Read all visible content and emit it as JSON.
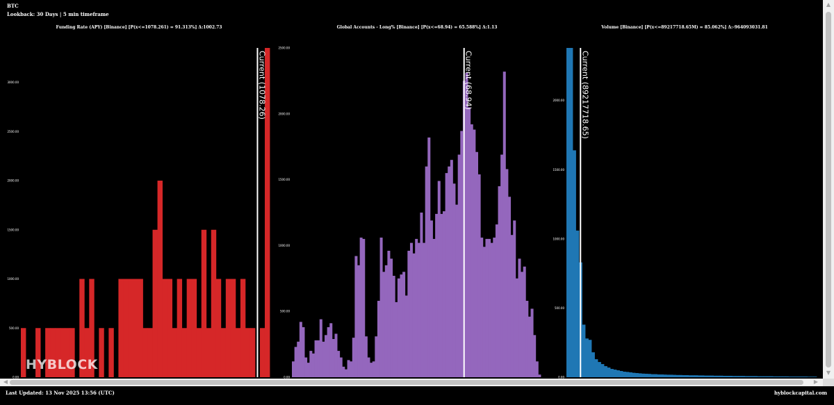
{
  "header": {
    "symbol": "BTC",
    "lookback": "Lookback: 30 Days | 5 min timeframe"
  },
  "logo": "HYBLOCK",
  "footer": {
    "last_updated": "Last Updated: 13 Nov 2025 13:56 (UTC)",
    "site": "hyblockcapital.com"
  },
  "colors": {
    "funding": "#d62728",
    "accounts": "#9467bd",
    "volume": "#1f77b4",
    "background": "#000000"
  },
  "chart_data": [
    {
      "type": "bar",
      "title": "Funding Rate (APY) [Binance] [P(x<=1078.261) = 91.313%] Δ:1002.73",
      "current_label": "Current (1078.26)",
      "current_index": 48.5,
      "ylim": [
        0,
        3350
      ],
      "yticks": [
        0,
        500,
        1000,
        1500,
        2000,
        2500,
        3000
      ],
      "ytick_labels": [
        "0.00",
        "500.00",
        "1000.00",
        "1500.00",
        "2000.00",
        "2500.00",
        "3000.00"
      ],
      "values": [
        500,
        0,
        0,
        500,
        0,
        500,
        500,
        500,
        500,
        500,
        500,
        0,
        1000,
        500,
        1000,
        0,
        500,
        0,
        500,
        0,
        1000,
        1000,
        1000,
        1000,
        1000,
        500,
        500,
        1500,
        2000,
        1000,
        1000,
        500,
        1000,
        500,
        1000,
        1000,
        500,
        1500,
        500,
        1500,
        1000,
        500,
        1000,
        1000,
        500,
        1000,
        500,
        500,
        0,
        500,
        3350
      ]
    },
    {
      "type": "bar",
      "title": "Global Accounts - Long% [Binance] [P(x<=68.94) = 65.588%] Δ:1.13",
      "current_label": "Current (68.94)",
      "current_index": 68.5,
      "ylim": [
        0,
        2500
      ],
      "yticks": [
        0,
        500,
        1000,
        1500,
        2000,
        2500
      ],
      "ytick_labels": [
        "0.00",
        "500.00",
        "1000.00",
        "1500.00",
        "2000.00",
        "2500.00"
      ],
      "values": [
        120,
        230,
        270,
        420,
        380,
        150,
        110,
        200,
        180,
        280,
        280,
        440,
        270,
        320,
        380,
        410,
        290,
        330,
        200,
        150,
        80,
        60,
        130,
        120,
        300,
        920,
        850,
        1060,
        1050,
        310,
        150,
        110,
        120,
        310,
        580,
        1060,
        800,
        850,
        960,
        900,
        770,
        570,
        750,
        780,
        800,
        620,
        960,
        1020,
        940,
        1050,
        1020,
        1250,
        1020,
        1600,
        1820,
        1190,
        1050,
        1240,
        1490,
        1240,
        1260,
        1550,
        1600,
        1650,
        1470,
        1310,
        1690,
        1870,
        2250,
        2310,
        2050,
        1920,
        1880,
        1710,
        1540,
        1060,
        990,
        1050,
        1050,
        1020,
        1060,
        1160,
        1450,
        1690,
        2320,
        1580,
        1370,
        1080,
        1190,
        750,
        900,
        800,
        840,
        580,
        460,
        520,
        320,
        120,
        20
      ]
    },
    {
      "type": "bar",
      "title": "Volume [Binance] [P(x<=89217718.65M) = 85.062%] Δ:-964093031.81",
      "current_label": "Current (89217718.65)",
      "current_index": 4.5,
      "ylim": [
        0,
        2380
      ],
      "yticks": [
        0,
        500,
        1000,
        1500,
        2000
      ],
      "ytick_labels": [
        "0.00",
        "500.00",
        "1000.00",
        "1500.00",
        "2000.00"
      ],
      "values": [
        2380,
        2380,
        1640,
        1060,
        830,
        380,
        280,
        270,
        180,
        130,
        110,
        95,
        80,
        70,
        60,
        55,
        50,
        45,
        40,
        38,
        35,
        32,
        30,
        28,
        26,
        25,
        24,
        22,
        22,
        20,
        20,
        19,
        18,
        18,
        17,
        16,
        16,
        15,
        15,
        14,
        14,
        14,
        13,
        13,
        12,
        12,
        12,
        11,
        11,
        11,
        10,
        10,
        10,
        9,
        9,
        9,
        9,
        8,
        8,
        8,
        8,
        7,
        7,
        7,
        7,
        7,
        6,
        6,
        6,
        6,
        6,
        5,
        5,
        5,
        5,
        5,
        5,
        4,
        4,
        4
      ]
    }
  ]
}
